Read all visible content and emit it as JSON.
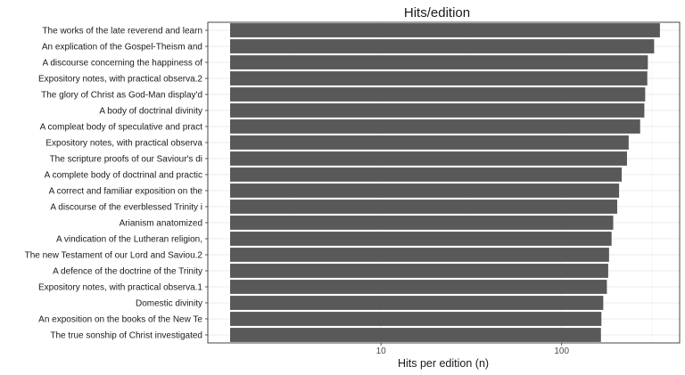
{
  "chart_data": {
    "type": "bar",
    "orientation": "horizontal",
    "title": "Hits/edition",
    "xlabel": "Hits per edition (n)",
    "ylabel": "",
    "x_scale": "log10",
    "xlim": [
      1.1,
      450
    ],
    "x_ticks": [
      {
        "value": 10,
        "label": "10"
      },
      {
        "value": 100,
        "label": "100"
      }
    ],
    "grid": true,
    "bar_color": "#595959",
    "categories": [
      "The works of the late reverend and learn",
      "An explication of the Gospel-Theism and",
      "A discourse concerning the happiness of",
      "Expository notes, with practical observa.2",
      "The glory of Christ as God-Man display'd",
      "A body of doctrinal divinity",
      "A compleat body of speculative and pract",
      "Expository notes, with practical observa",
      "The scripture proofs of our Saviour's di",
      "A complete body of doctrinal and practic",
      "A correct and familiar exposition on the",
      "A discourse of the everblessed Trinity i",
      "Arianism anatomized",
      "A vindication of the Lutheran religion,",
      "The new Testament of our Lord and Saviou.2",
      "A defence of the doctrine of the Trinity",
      "Expository notes, with practical observa.1",
      "Domestic divinity",
      "An exposition on the books of the New Te",
      "The true sonship of Christ investigated"
    ],
    "values": [
      350,
      325,
      300,
      298,
      290,
      287,
      272,
      235,
      230,
      215,
      208,
      203,
      193,
      189,
      183,
      181,
      178,
      170,
      166,
      165
    ]
  }
}
